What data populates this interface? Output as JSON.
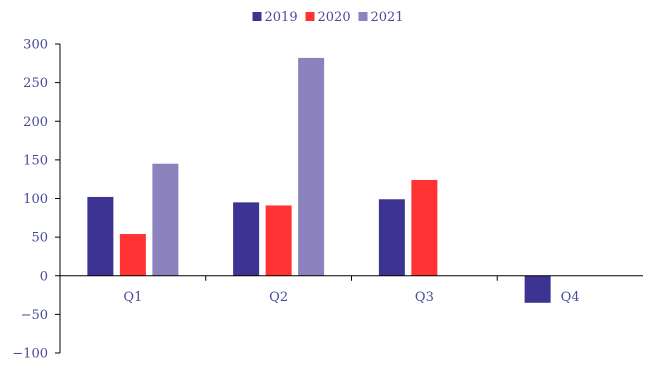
{
  "chart_data": {
    "type": "bar",
    "categories": [
      "Q1",
      "Q2",
      "Q3",
      "Q4"
    ],
    "series": [
      {
        "name": "2019",
        "color": "#3c3393",
        "values": [
          102,
          95,
          99,
          -35
        ]
      },
      {
        "name": "2020",
        "color": "#ff3333",
        "values": [
          54,
          91,
          124,
          null
        ]
      },
      {
        "name": "2021",
        "color": "#8b82be",
        "values": [
          145,
          282,
          null,
          null
        ]
      }
    ],
    "yticks": [
      -100,
      -50,
      0,
      50,
      100,
      150,
      200,
      250,
      300
    ],
    "ytick_labels": [
      "−100",
      "−50",
      "0",
      "50",
      "100",
      "150",
      "200",
      "250",
      "300"
    ],
    "ylim": [
      -100,
      300
    ],
    "legend_position": "top-center",
    "grid": false
  }
}
